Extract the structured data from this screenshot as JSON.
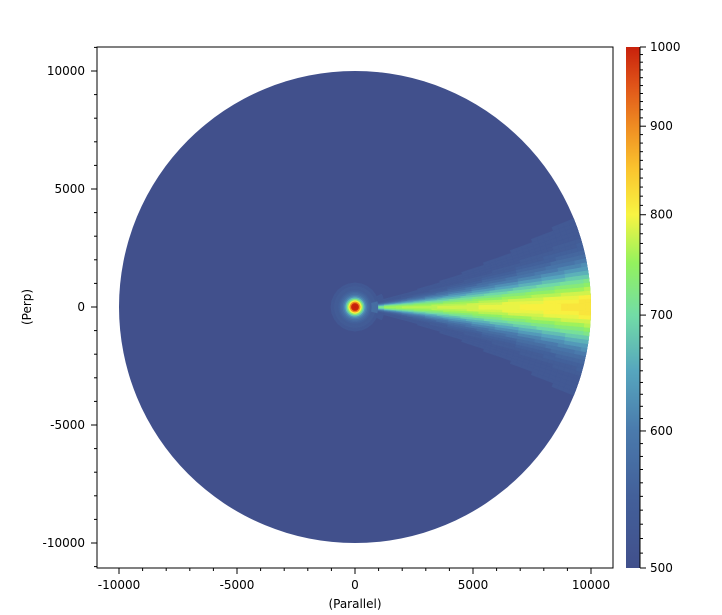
{
  "chart_data": {
    "type": "heatmap",
    "xlabel": "(Parallel)",
    "ylabel": "(Perp)",
    "xlim": [
      -11000,
      11000
    ],
    "ylim": [
      -11000,
      11000
    ],
    "xticks": [
      -10000,
      -5000,
      0,
      5000,
      10000
    ],
    "yticks": [
      -10000,
      -5000,
      0,
      5000,
      10000
    ],
    "domain": "disk",
    "domain_radius": 10000,
    "background_value": 520,
    "peak_value": 1000,
    "peak_location": [
      0,
      0
    ],
    "plume_direction": "+x",
    "colorbar": {
      "range": [
        500,
        1000
      ],
      "scale": "log",
      "ticks": [
        500,
        600,
        700,
        800,
        900,
        1000
      ],
      "colormap": [
        {
          "value": 500,
          "color": "#41508c"
        },
        {
          "value": 550,
          "color": "#43609a"
        },
        {
          "value": 600,
          "color": "#4a7aac"
        },
        {
          "value": 650,
          "color": "#56a6be"
        },
        {
          "value": 700,
          "color": "#72dca6"
        },
        {
          "value": 750,
          "color": "#93f25e"
        },
        {
          "value": 800,
          "color": "#f8f442"
        },
        {
          "value": 850,
          "color": "#fbc42e"
        },
        {
          "value": 900,
          "color": "#ef8c22"
        },
        {
          "value": 950,
          "color": "#e05419"
        },
        {
          "value": 1000,
          "color": "#c8210c"
        }
      ]
    }
  }
}
